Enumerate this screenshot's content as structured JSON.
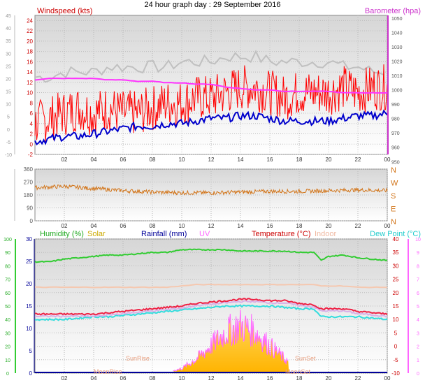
{
  "title": "24 hour graph day : 29 September 2016",
  "x_ticks": [
    "02",
    "04",
    "06",
    "08",
    "10",
    "12",
    "14",
    "16",
    "18",
    "20",
    "22",
    "00"
  ],
  "panel1": {
    "left_label": "Windspeed (kts)",
    "right_label": "Barometer (hpa)",
    "extra_left_ticks": [
      "45",
      "40",
      "35",
      "30",
      "25",
      "20",
      "15",
      "10",
      "5",
      "0",
      "-5",
      "-10"
    ],
    "left_ticks": [
      "24",
      "22",
      "20",
      "18",
      "16",
      "14",
      "12",
      "10",
      "8",
      "6",
      "4",
      "2",
      "0",
      "-2"
    ],
    "right_ticks": [
      "1050",
      "1040",
      "1030",
      "1020",
      "1010",
      "1000",
      "990",
      "980",
      "970",
      "960",
      "950"
    ]
  },
  "panel2": {
    "left_ticks": [
      "360",
      "270",
      "180",
      "90",
      "0"
    ],
    "dir_labels": [
      "N",
      "W",
      "S",
      "E",
      "N"
    ]
  },
  "panel3": {
    "legend": {
      "humidity": "Humidity (%)",
      "solar": "Solar",
      "rainfall": "Rainfall (mm)",
      "uv": "UV",
      "temperature": "Temperature (°C)",
      "indoor": "Indoor",
      "dewpoint": "Dew Point (°C)"
    },
    "hum_ticks": [
      "100",
      "90",
      "80",
      "70",
      "60",
      "50",
      "40",
      "30",
      "20",
      "10",
      "0"
    ],
    "rain_ticks": [
      "30",
      "25",
      "20",
      "15",
      "10",
      "5",
      "0"
    ],
    "temp_ticks": [
      "40",
      "35",
      "30",
      "25",
      "20",
      "15",
      "10",
      "5",
      "0",
      "-5",
      "-10"
    ],
    "uv_ticks": [
      "10",
      "9",
      "8",
      "7",
      "6",
      "5",
      "4",
      "3",
      "2",
      "1",
      "0"
    ],
    "annotations": {
      "sunrise": "SunRise",
      "sunset": "SunSet",
      "moonrise": "MoonRise",
      "moonset": "MoonSet"
    }
  },
  "colors": {
    "wind": "#ff0000",
    "gust": "#c0c0c0",
    "windavg": "#0000cc",
    "baro": "#ff33ff",
    "direction": "#d2751a",
    "humidity": "#33cc33",
    "temperature": "#ee2244",
    "indoor": "#f5c8b0",
    "dewpoint": "#33dddd",
    "solar": "#ffcc33",
    "uv": "#ff66ff"
  },
  "chart_data": [
    {
      "type": "line",
      "x": [
        0,
        1,
        2,
        3,
        4,
        5,
        6,
        7,
        8,
        9,
        10,
        11,
        12,
        13,
        14,
        15,
        16,
        17,
        18,
        19,
        20,
        21,
        22,
        23,
        24
      ],
      "xlabel": "",
      "ylabel": "Windspeed (kts)",
      "ylim": [
        -2,
        25
      ],
      "y2label": "Barometer (hpa)",
      "y2lim": [
        955,
        1052
      ],
      "series": [
        {
          "name": "Windspeed (kts)",
          "values": [
            4,
            5,
            6,
            7,
            6,
            7,
            6,
            6,
            7,
            8,
            8,
            9,
            9,
            10,
            11,
            11,
            10,
            9,
            10,
            10,
            10,
            11,
            10,
            11,
            11
          ]
        },
        {
          "name": "Barometer (hpa)",
          "values": [
            1007,
            1008,
            1008,
            1008,
            1008,
            1007,
            1007,
            1006,
            1006,
            1005,
            1005,
            1004,
            1004,
            1002,
            1001,
            1000,
            1000,
            999,
            999,
            999,
            999,
            998,
            998,
            998,
            998
          ]
        }
      ],
      "other_series": [
        {
          "values": [
            0.5,
            1,
            1.5,
            1.5,
            2,
            2.5,
            3,
            3.5,
            3.5,
            4,
            4,
            4.5,
            5,
            5,
            5.5,
            5.5,
            5,
            4.5,
            4.5,
            4.5,
            4.5,
            5,
            5.5,
            5.5,
            6
          ]
        },
        {
          "values": [
            13,
            13,
            14,
            14,
            14,
            15,
            15,
            15,
            15,
            15,
            16,
            16,
            16,
            17,
            17,
            17,
            16,
            16,
            16,
            16,
            16,
            15,
            15,
            14,
            14
          ]
        }
      ]
    },
    {
      "type": "line",
      "x": [
        0,
        2,
        4,
        6,
        8,
        10,
        12,
        14,
        16,
        18,
        20,
        22,
        24
      ],
      "ylim": [
        0,
        360
      ],
      "series": [
        {
          "values": [
            230,
            240,
            225,
            210,
            200,
            195,
            195,
            200,
            205,
            205,
            210,
            215,
            210
          ]
        }
      ]
    },
    {
      "type": "line",
      "x": [
        0,
        1,
        2,
        3,
        4,
        5,
        6,
        7,
        8,
        9,
        10,
        11,
        12,
        13,
        14,
        15,
        16,
        17,
        18,
        19,
        19.5,
        20,
        21,
        22,
        23,
        24
      ],
      "ylim": [
        0,
        100
      ],
      "y2lim": [
        -10,
        40
      ],
      "series": [
        {
          "name": "Humidity (%)",
          "values": [
            83,
            83,
            85,
            86,
            87,
            88,
            88,
            89,
            90,
            90,
            92,
            92,
            92,
            92,
            91,
            91,
            91,
            91,
            90,
            90,
            84,
            87,
            88,
            86,
            85,
            84
          ]
        },
        {
          "name": "Temperature (°C)",
          "values": [
            12,
            12,
            12,
            12,
            12,
            12.5,
            13,
            13.5,
            14,
            14.5,
            15,
            16,
            16.5,
            17,
            17.5,
            17.5,
            17,
            17,
            16,
            15.5,
            14,
            14,
            14,
            13,
            12.5,
            12
          ]
        },
        {
          "name": "Indoor",
          "values": [
            22,
            22,
            22,
            22,
            22,
            22,
            22,
            22,
            22,
            22,
            22.5,
            23,
            23,
            23,
            23,
            23,
            23,
            23,
            23,
            23,
            22.5,
            22.5,
            22.5,
            22,
            22,
            22
          ]
        },
        {
          "name": "Dew Point (°C)",
          "values": [
            10,
            10,
            10,
            10.5,
            11,
            11,
            11.5,
            12,
            12.5,
            13,
            13.5,
            14,
            14.5,
            15,
            15,
            15,
            15,
            14.5,
            14,
            14,
            11,
            11,
            11,
            11,
            10.5,
            10
          ]
        }
      ],
      "solar_profile": [
        0,
        0,
        0,
        0,
        0,
        0,
        0,
        0,
        0,
        0,
        0.3,
        1,
        2,
        3,
        3.5,
        3,
        2,
        1,
        0.3,
        0,
        0,
        0,
        0,
        0,
        0,
        0
      ]
    }
  ]
}
